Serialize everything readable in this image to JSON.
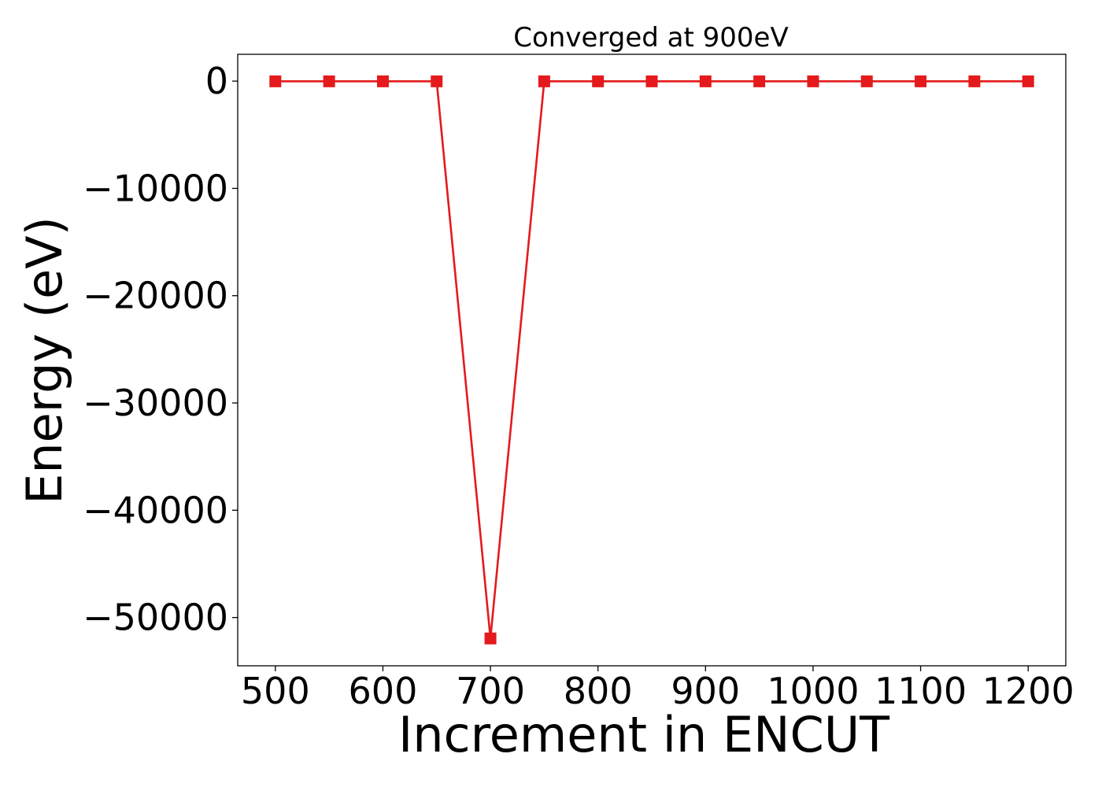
{
  "chart_data": {
    "type": "line",
    "title": "Converged at 900eV",
    "xlabel": "Increment in ENCUT",
    "ylabel": "Energy (eV)",
    "x": [
      500,
      550,
      600,
      650,
      700,
      750,
      800,
      850,
      900,
      950,
      1000,
      1050,
      1100,
      1150,
      1200
    ],
    "series": [
      {
        "values": [
          -20,
          -20,
          -20,
          -20,
          -51950,
          -20,
          -20,
          -20,
          -20,
          -20,
          -20,
          -20,
          -20,
          -20,
          -20
        ],
        "color": "#e41a1c",
        "marker": "square"
      }
    ],
    "xlim": [
      465,
      1235
    ],
    "ylim": [
      -54500,
      2500
    ],
    "xticks": [
      500,
      600,
      700,
      800,
      900,
      1000,
      1100,
      1200
    ],
    "xtick_labels": [
      "500",
      "600",
      "700",
      "800",
      "900",
      "1000",
      "1100",
      "1200"
    ],
    "yticks": [
      0,
      -10000,
      -20000,
      -30000,
      -40000,
      -50000
    ],
    "ytick_labels": [
      "0",
      "−10000",
      "−20000",
      "−30000",
      "−40000",
      "−50000"
    ],
    "grid": false,
    "legend": "none"
  }
}
